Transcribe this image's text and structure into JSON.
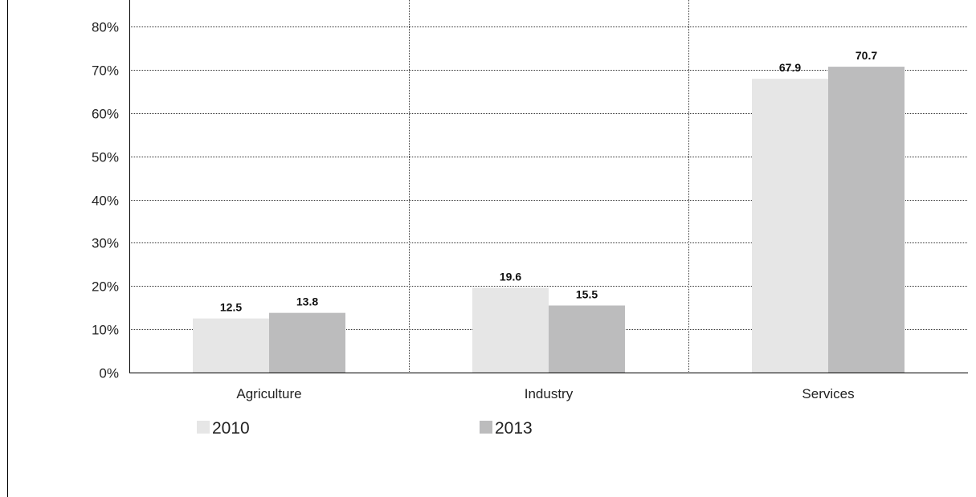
{
  "chart_data": {
    "type": "bar",
    "categories": [
      "Agriculture",
      "Industry",
      "Services"
    ],
    "series": [
      {
        "name": "2010",
        "values": [
          12.5,
          19.6,
          67.9
        ],
        "color": "#e6e6e6"
      },
      {
        "name": "2013",
        "values": [
          13.8,
          15.5,
          70.7
        ],
        "color": "#bcbcbd"
      }
    ],
    "data_labels": [
      [
        "12.5",
        "19.6",
        "67.9"
      ],
      [
        "13.8",
        "15.5",
        "70.7"
      ]
    ],
    "ylim": [
      0,
      80
    ],
    "yticks": [
      "0%",
      "10%",
      "20%",
      "30%",
      "40%",
      "50%",
      "60%",
      "70%",
      "80%"
    ],
    "ytick_values": [
      0,
      10,
      20,
      30,
      40,
      50,
      60,
      70,
      80
    ],
    "grid": true,
    "legend_position": "bottom-left",
    "title": "",
    "xlabel": "",
    "ylabel": ""
  }
}
